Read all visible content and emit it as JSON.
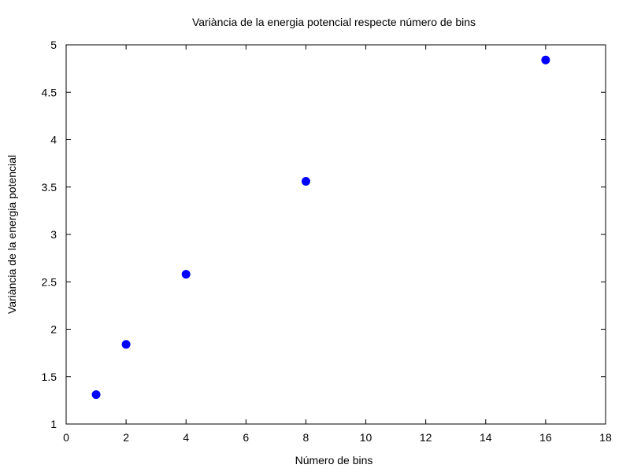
{
  "chart_data": {
    "type": "scatter",
    "title": "Variància de la energia potencial respecte número de bins",
    "xlabel": "Número de bins",
    "ylabel": "Variància de la energia potencial",
    "xlim": [
      0,
      18
    ],
    "ylim": [
      1,
      5
    ],
    "xticks": [
      0,
      2,
      4,
      6,
      8,
      10,
      12,
      14,
      16,
      18
    ],
    "yticks": [
      1,
      1.5,
      2,
      2.5,
      3,
      3.5,
      4,
      4.5,
      5
    ],
    "grid": false,
    "legend": "none",
    "point_color": "#0000ff",
    "series": [
      {
        "x": [
          1,
          2,
          4,
          8,
          16
        ],
        "y": [
          1.31,
          1.84,
          2.58,
          3.56,
          4.84
        ]
      }
    ]
  }
}
